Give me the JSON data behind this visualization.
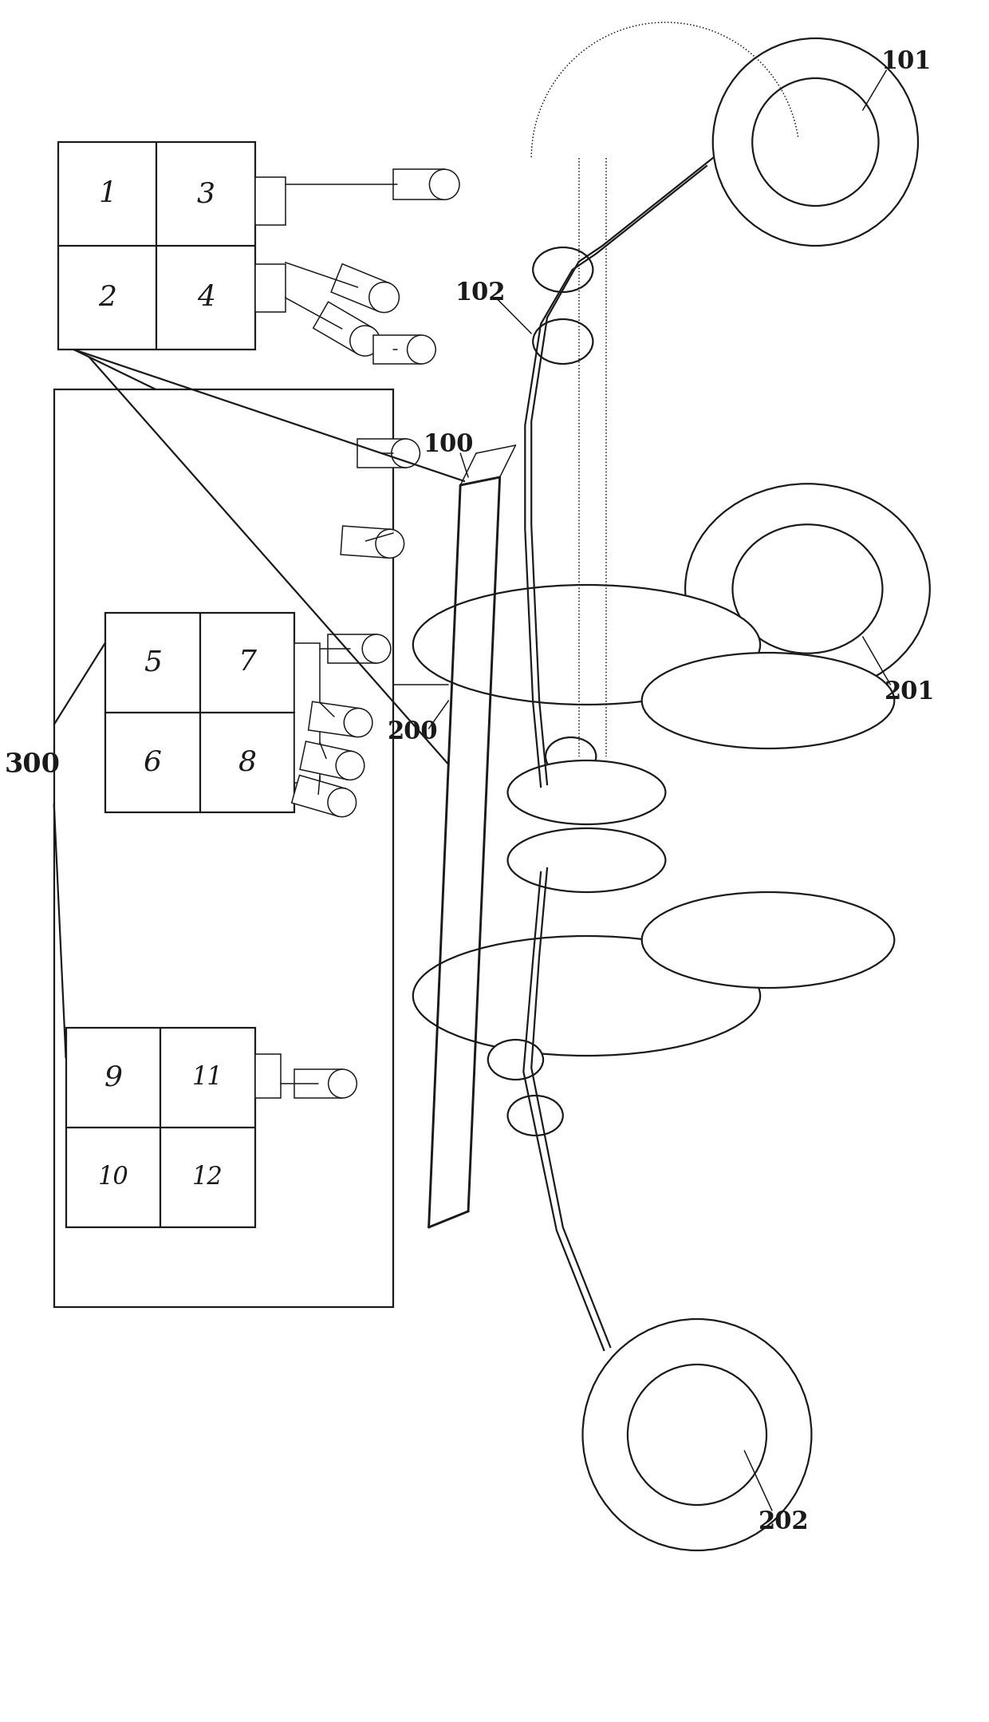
{
  "bg_color": "#ffffff",
  "lc": "#1a1a1a",
  "lw": 1.6,
  "lw_thin": 1.1,
  "figsize": [
    12.4,
    21.58
  ],
  "dpi": 100,
  "xlim": [
    0,
    1240
  ],
  "ylim": [
    0,
    2158
  ]
}
